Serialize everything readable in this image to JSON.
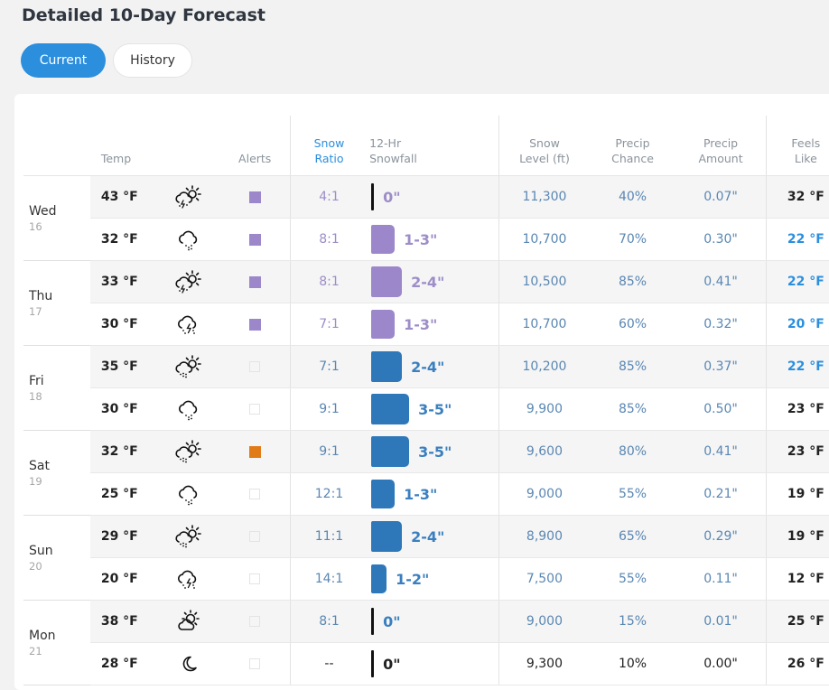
{
  "page": {
    "title": "Detailed 10-Day Forecast"
  },
  "tabs": [
    {
      "label": "Current",
      "active": true
    },
    {
      "label": "History",
      "active": false
    }
  ],
  "columns": {
    "temp": "Temp",
    "alerts": "Alerts",
    "snow_ratio": [
      "Snow",
      "Ratio"
    ],
    "snowfall": [
      "12-Hr",
      "Snowfall"
    ],
    "snow_level": [
      "Snow",
      "Level (ft)"
    ],
    "precip_chance": [
      "Precip",
      "Chance"
    ],
    "precip_amount": [
      "Precip",
      "Amount"
    ],
    "feels_like": [
      "Feels",
      "Like"
    ]
  },
  "colors": {
    "accent": "#2b8fde",
    "purple_bar": "#9b87c9",
    "blue_bar": "#2e78ba",
    "orange_alert": "#e07b18"
  },
  "days": [
    {
      "name": "Wed",
      "date": "16"
    },
    {
      "name": "Thu",
      "date": "17"
    },
    {
      "name": "Fri",
      "date": "18"
    },
    {
      "name": "Sat",
      "date": "19"
    },
    {
      "name": "Sun",
      "date": "20"
    },
    {
      "name": "Mon",
      "date": "21"
    }
  ],
  "rows": [
    {
      "temp": "43 °F",
      "icon": "partly-sunny-thunder-icon",
      "alert": "purple",
      "ratio": "4:1",
      "snowfall": "0\"",
      "snow_level": "11,300",
      "chance": "40%",
      "amount": "0.07\"",
      "feels": "32 °F",
      "feels_style": "dark",
      "color": "purple"
    },
    {
      "temp": "32 °F",
      "icon": "cloud-snow-icon",
      "alert": "purple",
      "ratio": "8:1",
      "snowfall": "1-3\"",
      "snow_level": "10,700",
      "chance": "70%",
      "amount": "0.30\"",
      "feels": "22 °F",
      "feels_style": "blue",
      "color": "purple"
    },
    {
      "temp": "33 °F",
      "icon": "partly-sunny-thunder-icon",
      "alert": "purple",
      "ratio": "8:1",
      "snowfall": "2-4\"",
      "snow_level": "10,500",
      "chance": "85%",
      "amount": "0.41\"",
      "feels": "22 °F",
      "feels_style": "blue",
      "color": "purple"
    },
    {
      "temp": "30 °F",
      "icon": "cloud-thunder-snow-icon",
      "alert": "purple",
      "ratio": "7:1",
      "snowfall": "1-3\"",
      "snow_level": "10,700",
      "chance": "60%",
      "amount": "0.32\"",
      "feels": "20 °F",
      "feels_style": "blue",
      "color": "purple"
    },
    {
      "temp": "35 °F",
      "icon": "partly-sunny-snow-icon",
      "alert": "none",
      "ratio": "7:1",
      "snowfall": "2-4\"",
      "snow_level": "10,200",
      "chance": "85%",
      "amount": "0.37\"",
      "feels": "22 °F",
      "feels_style": "blue",
      "color": "blue"
    },
    {
      "temp": "30 °F",
      "icon": "cloud-snow-icon",
      "alert": "none",
      "ratio": "9:1",
      "snowfall": "3-5\"",
      "snow_level": "9,900",
      "chance": "85%",
      "amount": "0.50\"",
      "feels": "23 °F",
      "feels_style": "dark",
      "color": "blue"
    },
    {
      "temp": "32 °F",
      "icon": "partly-sunny-snow-icon",
      "alert": "orange",
      "ratio": "9:1",
      "snowfall": "3-5\"",
      "snow_level": "9,600",
      "chance": "80%",
      "amount": "0.41\"",
      "feels": "23 °F",
      "feels_style": "dark",
      "color": "blue"
    },
    {
      "temp": "25 °F",
      "icon": "cloud-snow-icon",
      "alert": "none",
      "ratio": "12:1",
      "snowfall": "1-3\"",
      "snow_level": "9,000",
      "chance": "55%",
      "amount": "0.21\"",
      "feels": "19 °F",
      "feels_style": "dark",
      "color": "blue"
    },
    {
      "temp": "29 °F",
      "icon": "partly-sunny-snow-icon",
      "alert": "none",
      "ratio": "11:1",
      "snowfall": "2-4\"",
      "snow_level": "8,900",
      "chance": "65%",
      "amount": "0.29\"",
      "feels": "19 °F",
      "feels_style": "dark",
      "color": "blue"
    },
    {
      "temp": "20 °F",
      "icon": "cloud-thunder-snow-icon",
      "alert": "none",
      "ratio": "14:1",
      "snowfall": "1-2\"",
      "snow_level": "7,500",
      "chance": "55%",
      "amount": "0.11\"",
      "feels": "12 °F",
      "feels_style": "dark",
      "color": "blue"
    },
    {
      "temp": "38 °F",
      "icon": "partly-sunny-icon",
      "alert": "none",
      "ratio": "8:1",
      "snowfall": "0\"",
      "snow_level": "9,000",
      "chance": "15%",
      "amount": "0.01\"",
      "feels": "25 °F",
      "feels_style": "dark",
      "color": "blue"
    },
    {
      "temp": "28 °F",
      "icon": "moon-icon",
      "alert": "none",
      "ratio": "--",
      "snowfall": "0\"",
      "snow_level": "9,300",
      "chance": "10%",
      "amount": "0.00\"",
      "feels": "26 °F",
      "feels_style": "dark",
      "color": "plain"
    }
  ]
}
